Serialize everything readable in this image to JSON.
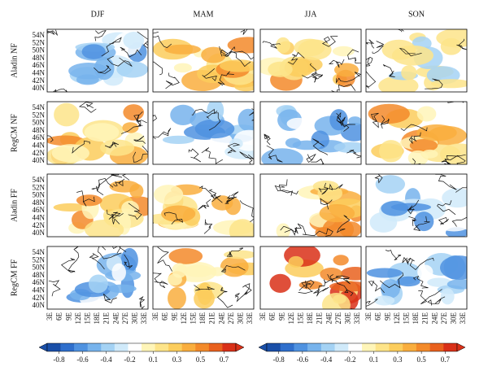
{
  "columns": [
    "DJF",
    "MAM",
    "JJA",
    "SON"
  ],
  "rows": [
    "Aladin NF",
    "RegCM NF",
    "Aladin FF",
    "RegCM FF"
  ],
  "lat_ticks": [
    "54N",
    "52N",
    "50N",
    "48N",
    "46N",
    "44N",
    "42N",
    "40N"
  ],
  "lon_ticks": [
    "3E",
    "6E",
    "9E",
    "12E",
    "15E",
    "18E",
    "21E",
    "24E",
    "27E",
    "30E",
    "33E"
  ],
  "colorbar": {
    "ticks": [
      -0.8,
      -0.6,
      -0.4,
      -0.2,
      0.1,
      0.3,
      0.5,
      0.7
    ],
    "colors": [
      "#1a4fa8",
      "#2f6fcc",
      "#4f92e0",
      "#77b3ec",
      "#a4d2f4",
      "#d0eafa",
      "#ffffff",
      "#fff5b8",
      "#fde489",
      "#fccd5c",
      "#f9ae3e",
      "#f38a2a",
      "#e9611e",
      "#d93018"
    ]
  }
}
